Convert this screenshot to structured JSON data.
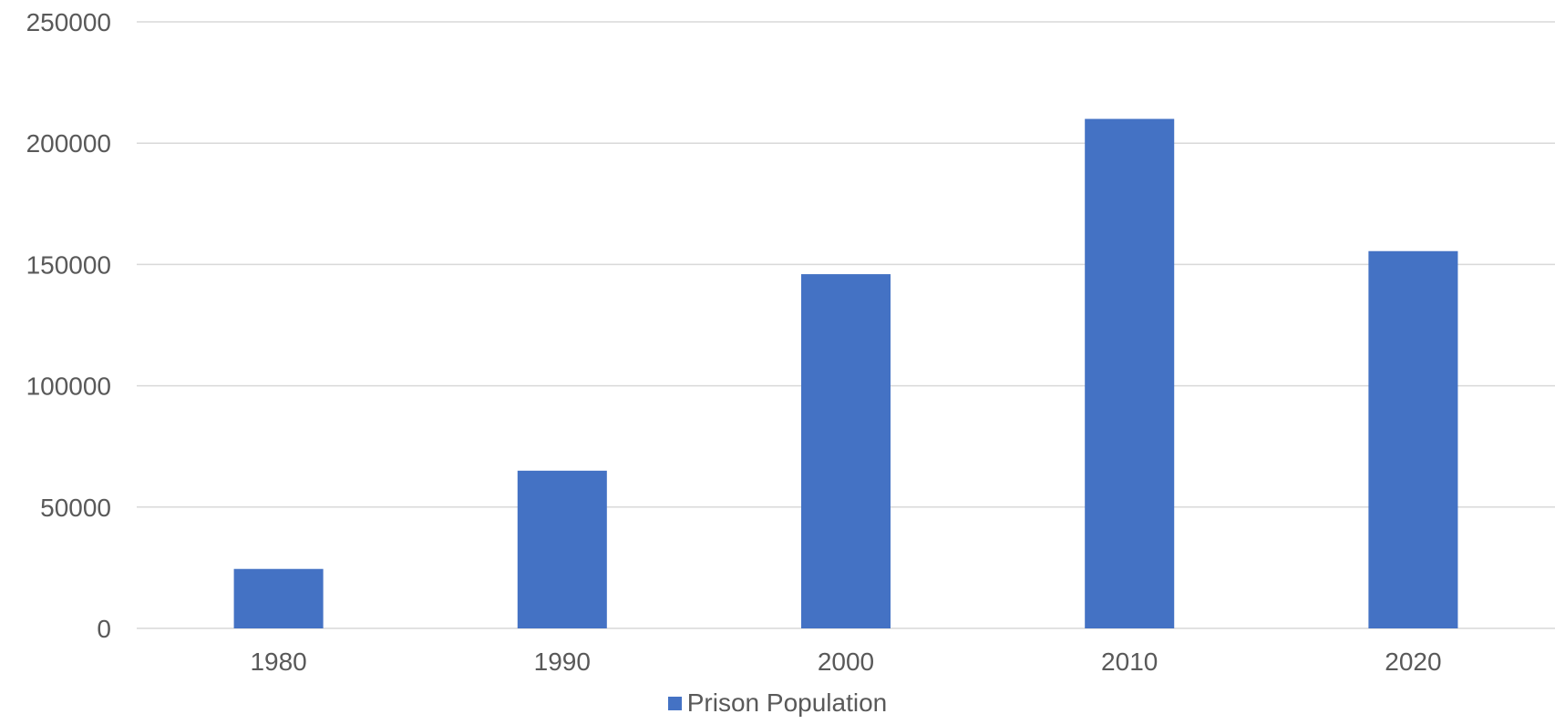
{
  "chart_data": {
    "type": "bar",
    "categories": [
      "1980",
      "1990",
      "2000",
      "2010",
      "2020"
    ],
    "series": [
      {
        "name": "Prison Population",
        "values": [
          24500,
          65000,
          146000,
          210000,
          155500
        ],
        "color": "#4472c4"
      }
    ],
    "ylim": [
      0,
      250000
    ],
    "yticks": [
      "0",
      "50000",
      "100000",
      "150000",
      "200000",
      "250000"
    ],
    "grid": true,
    "legend_position": "bottom"
  }
}
